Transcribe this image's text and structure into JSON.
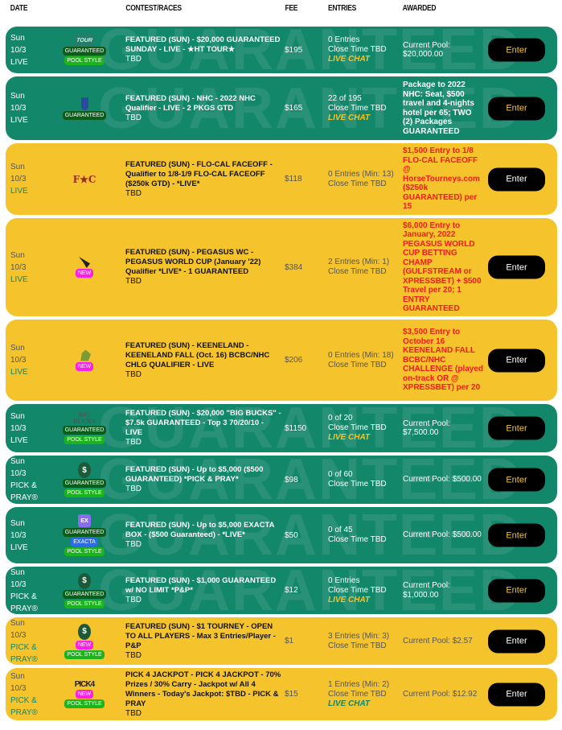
{
  "header": {
    "date": "DATE",
    "contest": "CONTEST/RACES",
    "fee": "FEE",
    "entries": "ENTRIES",
    "awarded": "AWARDED"
  },
  "watermark": "GUARANTEED",
  "enter_label": "Enter",
  "colors": {
    "green": "#13876a",
    "yellow": "#f5c32b",
    "red": "#f21b1b",
    "button": "#000000"
  },
  "rows": [
    {
      "style": "green",
      "h": 58,
      "day": "Sun",
      "date": "10/3",
      "type": "LIVE",
      "logo": "TOUR",
      "logo_icon": "ht-tour-logo",
      "badges": [
        "GUARANTEED",
        "POOL STYLE"
      ],
      "name": "FEATURED (SUN) - $20,000 GUARANTEED SUNDAY - LIVE - ★HT TOUR★",
      "track": "TBD",
      "fee": "$195",
      "entries": "0 Entries",
      "close": "Close Time TBD",
      "chat": "LIVE CHAT",
      "awarded": "Current Pool: $20,000.00",
      "awarded_style": "pool"
    },
    {
      "style": "green",
      "h": 79,
      "day": "Sun",
      "date": "10/3",
      "type": "LIVE",
      "logo": "NHC",
      "logo_icon": "nhc-shield-logo",
      "badges": [
        "GUARANTEED"
      ],
      "name": "FEATURED (SUN) - NHC - 2022 NHC Qualifier - LIVE - 2 PKGS GTD",
      "track": "TBD",
      "fee": "$165",
      "entries": "22 of 195",
      "close": "Close Time TBD",
      "chat": "LIVE CHAT",
      "awarded": "Package to 2022 NHC: Seat, $500 travel and 4-nights hotel per 65; TWO (2) Packages GUARANTEED",
      "awarded_style": "pk"
    },
    {
      "style": "yellow",
      "h": 89,
      "day": "Sun",
      "date": "10/3",
      "type": "LIVE",
      "logo": "F★C",
      "logo_icon": "flo-cal-logo",
      "badges": [],
      "name": "FEATURED (SUN) - FLO-CAL FACEOFF - Qualifier to 1/8-1/9 FLO-CAL FACEOFF ($250k GTD) - *LIVE*",
      "track": "TBD",
      "fee": "$118",
      "entries": "0 Entries (Min: 13)",
      "close": "Close Time TBD",
      "chat": "",
      "awarded": "$1,500 Entry to 1/8 FLO-CAL FACEOFF @ HorseTourneys.com ($250k GUARANTEED) per 15",
      "awarded_style": "red"
    },
    {
      "style": "yellow",
      "h": 122,
      "day": "Sun",
      "date": "10/3",
      "type": "LIVE",
      "logo": "",
      "logo_icon": "pegasus-logo",
      "badges": [
        "NEW"
      ],
      "name": "FEATURED (SUN) - PEGASUS WC - PEGASUS WORLD CUP (January '22) Qualifier *LIVE* - 1 GUARANTEED",
      "track": "TBD",
      "fee": "$384",
      "entries": "2 Entries (Min: 1)",
      "close": "Close Time TBD",
      "chat": "",
      "awarded": "$6,000 Entry to January, 2022 PEGASUS WORLD CUP BETTING CHAMP (GULFSTREAM or XPRESSBET) + $500 Travel per 20; 1 ENTRY GUARANTEED",
      "awarded_style": "red"
    },
    {
      "style": "yellow",
      "h": 101,
      "day": "Sun",
      "date": "10/3",
      "type": "LIVE",
      "logo": "",
      "logo_icon": "keeneland-horse-logo",
      "badges": [
        "NEW"
      ],
      "name": "FEATURED (SUN) - KEENELAND - KEENELAND FALL (Oct. 16) BCBC/NHC CHLG QUALIFIER - LIVE",
      "track": "TBD",
      "fee": "$206",
      "entries": "0 Entries (Min: 18)",
      "close": "Close Time TBD",
      "chat": "",
      "awarded": "$3,500 Entry to October 16 KEENELAND FALL BCBC/NHC CHALLENGE (played on-track OR @ XPRESSBET) per 20",
      "awarded_style": "red"
    },
    {
      "style": "green",
      "h": 60,
      "day": "Sun",
      "date": "10/3",
      "type": "LIVE",
      "logo": "BIG BUCKS",
      "logo_icon": "big-bucks-logo",
      "badges": [
        "GUARANTEED",
        "POOL STYLE"
      ],
      "name": "FEATURED (SUN) - $20,000 \"BIG BUCKS\" - $7.5k GUARANTEED - Top 3 70/20/10 - LIVE",
      "track": "TBD",
      "fee": "$1150",
      "entries": "0 of 20",
      "close": "Close Time TBD",
      "chat": "LIVE CHAT",
      "awarded": "Current Pool: $7,500.00",
      "awarded_style": "pool"
    },
    {
      "style": "green",
      "h": 60,
      "day": "Sun",
      "date": "10/3",
      "type": "PICK & PRAY®",
      "logo": "$",
      "logo_icon": "dollar-coin-icon",
      "badges": [
        "GUARANTEED",
        "POOL STYLE"
      ],
      "name": "FEATURED (SUN) - Up to $5,000 ($500 GUARANTEED) *PICK & PRAY*",
      "track": "TBD",
      "fee": "$98",
      "entries": "0 of 60",
      "close": "Close Time TBD",
      "chat": "",
      "awarded": "Current Pool: $500.00",
      "awarded_style": "pool"
    },
    {
      "style": "green",
      "h": 70,
      "day": "Sun",
      "date": "10/3",
      "type": "LIVE",
      "logo": "EX",
      "logo_icon": "exacta-icon",
      "badges": [
        "GUARANTEED",
        "EXACTA",
        "POOL STYLE"
      ],
      "name": "FEATURED (SUN) - Up to $5,000 EXACTA BOX - ($500 Guaranteed) - *LIVE*",
      "track": "TBD",
      "fee": "$50",
      "entries": "0 of 45",
      "close": "Close Time TBD",
      "chat": "",
      "awarded": "Current Pool: $500.00",
      "awarded_style": "pool"
    },
    {
      "style": "green",
      "h": 59,
      "day": "Sun",
      "date": "10/3",
      "type": "PICK & PRAY®",
      "logo": "$",
      "logo_icon": "dollar-coin-icon",
      "badges": [
        "GUARANTEED",
        "POOL STYLE"
      ],
      "name": "FEATURED (SUN) - $1,000 GUARANTEED w/ NO LIMIT *P&P*",
      "track": "TBD",
      "fee": "$12",
      "entries": "0 Entries",
      "close": "Close Time TBD",
      "chat": "LIVE CHAT",
      "awarded": "Current Pool: $1,000.00",
      "awarded_style": "pool"
    },
    {
      "style": "yellow",
      "h": 59,
      "day": "Sun",
      "date": "10/3",
      "type": "PICK & PRAY®",
      "logo": "$",
      "logo_icon": "dollar-coin-icon",
      "badges": [
        "NEW",
        "POOL STYLE"
      ],
      "name": "FEATURED (SUN) - $1 TOURNEY - OPEN TO ALL PLAYERS - Max 3 Entries/Player - P&P",
      "track": "TBD",
      "fee": "$1",
      "entries": "3 Entries (Min: 3)",
      "close": "Close Time TBD",
      "chat": "",
      "awarded": "Current Pool: $2.57",
      "awarded_style": "pool"
    },
    {
      "style": "yellow",
      "h": 65,
      "day": "Sun",
      "date": "10/3",
      "type": "PICK & PRAY®",
      "logo": "PICK4",
      "logo_icon": "pick4-jackpot-logo",
      "badges": [
        "NEW",
        "POOL STYLE"
      ],
      "name": "PICK 4 JACKPOT - PICK 4 JACKPOT - 70% Prizes / 30% Carry - Jackpot w/ All 4 Winners - Today's Jackpot: $TBD - PICK & PRAY",
      "track": "TBD",
      "fee": "$15",
      "entries": "1 Entries (Min: 2)",
      "close": "Close Time TBD",
      "chat": "LIVE CHAT",
      "awarded": "Current Pool: $12.92",
      "awarded_style": "pool"
    }
  ]
}
